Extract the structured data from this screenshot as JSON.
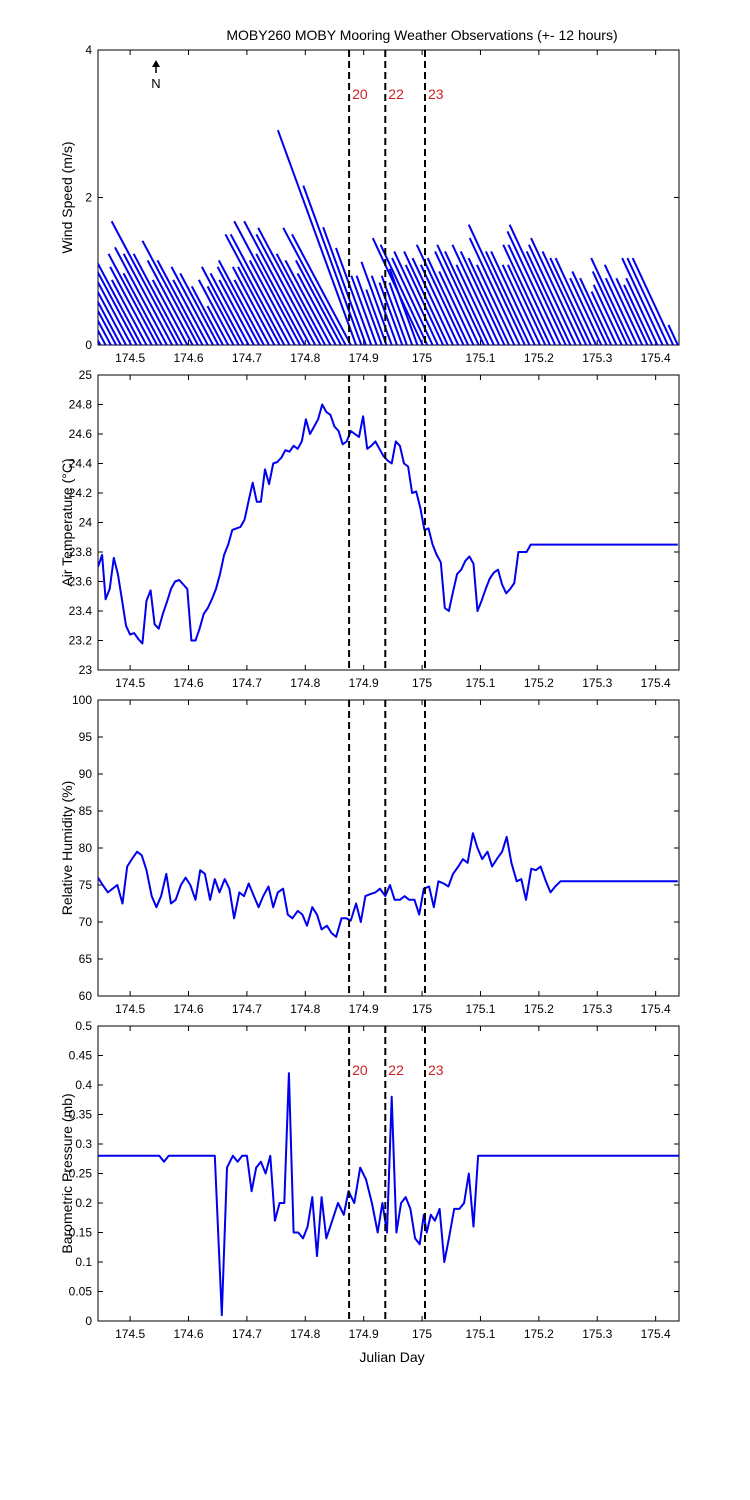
{
  "title": "MOBY260 MOBY Mooring Weather Observations (+- 12 hours)",
  "xlabel": "Julian Day",
  "xlim": [
    174.445,
    175.44
  ],
  "xticks": [
    "174.5",
    "174.6",
    "174.7",
    "174.8",
    "174.9",
    "175",
    "175.1",
    "175.2",
    "175.3",
    "175.4"
  ],
  "markers": [
    {
      "x": 174.875,
      "label": "20"
    },
    {
      "x": 174.937,
      "label": "22"
    },
    {
      "x": 175.005,
      "label": "23"
    }
  ],
  "north_label": "N",
  "colors": {
    "series": "#0000ee",
    "marker_label": "#cc2222",
    "axis": "#000000"
  },
  "chart_data": [
    {
      "type": "line",
      "subtype": "wind-vectors",
      "ylabel": "Wind Speed (m/s)",
      "ylim": [
        0,
        4
      ],
      "yticks": [
        "0",
        "2",
        "4"
      ],
      "show_markers": true,
      "marker_labels": true,
      "x": [
        174.449,
        174.458,
        174.467,
        174.476,
        174.484,
        174.493,
        174.502,
        174.511,
        174.519,
        174.528,
        174.537,
        174.546,
        174.554,
        174.563,
        174.572,
        174.581,
        174.589,
        174.598,
        174.607,
        174.616,
        174.624,
        174.633,
        174.642,
        174.651,
        174.659,
        174.668,
        174.677,
        174.686,
        174.694,
        174.703,
        174.712,
        174.721,
        174.729,
        174.738,
        174.747,
        174.756,
        174.764,
        174.773,
        174.782,
        174.791,
        174.799,
        174.808,
        174.817,
        174.826,
        174.834,
        174.843,
        174.852,
        174.861,
        174.869,
        174.878,
        174.887,
        174.896,
        174.904,
        174.913,
        174.922,
        174.931,
        174.939,
        174.948,
        174.957,
        174.966,
        174.974,
        174.983,
        174.992,
        175.001,
        175.009,
        175.018,
        175.027,
        175.036,
        175.044,
        175.053,
        175.062,
        175.071,
        175.079,
        175.088,
        175.097,
        175.106,
        175.114,
        175.123,
        175.132,
        175.141,
        175.149,
        175.158,
        175.167,
        175.176,
        175.184,
        175.193,
        175.202,
        175.211,
        175.219,
        175.228,
        175.237,
        175.246,
        175.254,
        175.263,
        175.272,
        175.281,
        175.289,
        175.298,
        175.307,
        175.316,
        175.324,
        175.333,
        175.342,
        175.351,
        175.359,
        175.368,
        175.377,
        175.386,
        175.394,
        175.403,
        175.412,
        175.421,
        175.43,
        175.438
      ],
      "speed": [
        0.5,
        0.6,
        1.0,
        1.2,
        1.2,
        1.0,
        1.3,
        1.3,
        1.4,
        1.0,
        1.2,
        1.4,
        1.1,
        1.5,
        1.4,
        1.9,
        1.4,
        1.0,
        1.3,
        1.6,
        1.3,
        1.0,
        1.2,
        1.1,
        0.9,
        0.6,
        1.0,
        0.9,
        1.2,
        1.1,
        1.0,
        1.2,
        1.3,
        1.0,
        1.2,
        1.2,
        1.7,
        1.7,
        1.3,
        1.9,
        1.4,
        1.9,
        1.7,
        1.8,
        1.4,
        1.3,
        1.1,
        1.3,
        1.8,
        1.7,
        3.1,
        2.3,
        1.7,
        1.4,
        1.0,
        1.0,
        0.8,
        1.2,
        1.0,
        0.9,
        1.0,
        0.9,
        1.1,
        1.6,
        1.5,
        1.3,
        1.4,
        1.2,
        1.4,
        1.3,
        1.2,
        1.5,
        1.3,
        1.1,
        1.4,
        1.5,
        1.4,
        1.2,
        1.5,
        1.4,
        1.3,
        1.2,
        1.6,
        1.8,
        1.4,
        1.4,
        1.2,
        1.2,
        1.5,
        1.5,
        1.7,
        1.8,
        1.4,
        1.5,
        1.6,
        1.4,
        1.3,
        1.3,
        1.0,
        1.1,
        1.0,
        0.8,
        0.9,
        1.1,
        1.3,
        1.0,
        1.2,
        1.0,
        0.9,
        1.0,
        1.3,
        1.3,
        1.3,
        0.3
      ],
      "direction_deg": [
        -28,
        -28,
        -28,
        -28,
        -28,
        -28,
        -28,
        -28,
        -28,
        -28,
        -28,
        -28,
        -28,
        -28,
        -28,
        -28,
        -28,
        -28,
        -28,
        -28,
        -28,
        -28,
        -28,
        -28,
        -28,
        -28,
        -28,
        -28,
        -28,
        -28,
        -28,
        -28,
        -28,
        -28,
        -28,
        -28,
        -28,
        -28,
        -28,
        -28,
        -28,
        -28,
        -28,
        -28,
        -28,
        -28,
        -28,
        -28,
        -28,
        -28,
        -20,
        -20,
        -20,
        -20,
        -20,
        -20,
        -20,
        -20,
        -20,
        -20,
        -20,
        -20,
        -20,
        -25,
        -25,
        -25,
        -25,
        -25,
        -25,
        -25,
        -25,
        -25,
        -25,
        -25,
        -25,
        -25,
        -25,
        -25,
        -25,
        -25,
        -25,
        -25,
        -25,
        -25,
        -25,
        -25,
        -25,
        -25,
        -25,
        -25,
        -25,
        -25,
        -25,
        -25,
        -25,
        -25,
        -25,
        -25,
        -25,
        -25,
        -25,
        -25,
        -25,
        -25,
        -25,
        -25,
        -25,
        -25,
        -25,
        -25,
        -25,
        -25,
        -25,
        -25
      ]
    },
    {
      "type": "line",
      "ylabel": "Air Temperature (°C)",
      "ylim": [
        23,
        25
      ],
      "yticks": [
        "23",
        "23.2",
        "23.4",
        "23.6",
        "23.8",
        "24",
        "24.2",
        "24.4",
        "24.6",
        "24.8",
        "25"
      ],
      "show_markers": true,
      "marker_labels": false,
      "x": [
        174.445,
        174.452,
        174.458,
        174.465,
        174.472,
        174.479,
        174.486,
        174.493,
        174.5,
        174.507,
        174.514,
        174.521,
        174.528,
        174.535,
        174.542,
        174.549,
        174.556,
        174.563,
        174.57,
        174.577,
        174.584,
        174.591,
        174.598,
        174.605,
        174.612,
        174.619,
        174.626,
        174.633,
        174.64,
        174.647,
        174.654,
        174.661,
        174.668,
        174.675,
        174.682,
        174.689,
        174.696,
        174.703,
        174.71,
        174.717,
        174.724,
        174.731,
        174.738,
        174.745,
        174.752,
        174.759,
        174.766,
        174.773,
        174.78,
        174.787,
        174.794,
        174.801,
        174.808,
        174.815,
        174.822,
        174.829,
        174.836,
        174.843,
        174.85,
        174.857,
        174.864,
        174.871,
        174.878,
        174.885,
        174.892,
        174.899,
        174.906,
        174.913,
        174.92,
        174.927,
        174.934,
        174.941,
        174.948,
        174.955,
        174.962,
        174.969,
        174.976,
        174.983,
        174.99,
        174.997,
        175.004,
        175.011,
        175.018,
        175.025,
        175.032,
        175.039,
        175.046,
        175.053,
        175.06,
        175.067,
        175.074,
        175.081,
        175.088,
        175.095,
        175.102,
        175.109,
        175.116,
        175.123,
        175.13,
        175.137,
        175.144,
        175.151,
        175.158,
        175.165,
        175.172,
        175.179,
        175.186,
        175.193,
        175.2,
        175.207,
        175.214,
        175.221,
        175.228,
        175.235,
        175.242,
        175.249,
        175.256,
        175.263,
        175.27,
        175.277,
        175.284,
        175.291,
        175.298,
        175.305,
        175.312,
        175.319,
        175.326,
        175.333,
        175.34,
        175.347,
        175.354,
        175.361,
        175.368,
        175.375,
        175.382,
        175.389,
        175.396,
        175.403,
        175.41,
        175.417,
        175.424,
        175.431,
        175.438
      ],
      "y": [
        23.7,
        23.78,
        23.48,
        23.55,
        23.76,
        23.65,
        23.48,
        23.3,
        23.24,
        23.25,
        23.21,
        23.18,
        23.47,
        23.54,
        23.31,
        23.28,
        23.38,
        23.46,
        23.55,
        23.6,
        23.61,
        23.58,
        23.55,
        23.2,
        23.2,
        23.28,
        23.38,
        23.42,
        23.48,
        23.55,
        23.65,
        23.78,
        23.85,
        23.95,
        23.96,
        23.97,
        24.02,
        24.15,
        24.27,
        24.14,
        24.14,
        24.36,
        24.26,
        24.4,
        24.41,
        24.44,
        24.49,
        24.48,
        24.52,
        24.5,
        24.55,
        24.7,
        24.6,
        24.65,
        24.7,
        24.8,
        24.75,
        24.73,
        24.65,
        24.62,
        24.53,
        24.55,
        24.62,
        24.6,
        24.58,
        24.72,
        24.5,
        24.52,
        24.55,
        24.5,
        24.45,
        24.42,
        24.4,
        24.55,
        24.52,
        24.4,
        24.38,
        24.2,
        24.21,
        24.1,
        23.95,
        23.96,
        23.85,
        23.78,
        23.73,
        23.42,
        23.4,
        23.53,
        23.65,
        23.68,
        23.74,
        23.77,
        23.72,
        23.4,
        23.47,
        23.55,
        23.62,
        23.66,
        23.68,
        23.58,
        23.52,
        23.55,
        23.59,
        23.8,
        23.8,
        23.8,
        23.85,
        23.85,
        23.85,
        23.85,
        23.85,
        23.85,
        23.85,
        23.85,
        23.85,
        23.85,
        23.85,
        23.85,
        23.85,
        23.85,
        23.85,
        23.85,
        23.85,
        23.85,
        23.85,
        23.85,
        23.85,
        23.85,
        23.85,
        23.85,
        23.85,
        23.85,
        23.85,
        23.85,
        23.85,
        23.85,
        23.85,
        23.85,
        23.85,
        23.85,
        23.85,
        23.85,
        23.85
      ]
    },
    {
      "type": "line",
      "ylabel": "Relative Humidity (%)",
      "ylim": [
        60,
        100
      ],
      "yticks": [
        "60",
        "65",
        "70",
        "75",
        "80",
        "85",
        "90",
        "95",
        "100"
      ],
      "show_markers": true,
      "marker_labels": false,
      "x": [
        174.445,
        174.453,
        174.462,
        174.47,
        174.478,
        174.487,
        174.495,
        174.503,
        174.512,
        174.52,
        174.528,
        174.537,
        174.545,
        174.553,
        174.562,
        174.57,
        174.578,
        174.587,
        174.595,
        174.603,
        174.612,
        174.62,
        174.628,
        174.637,
        174.645,
        174.653,
        174.662,
        174.67,
        174.678,
        174.687,
        174.695,
        174.703,
        174.712,
        174.72,
        174.728,
        174.737,
        174.745,
        174.753,
        174.762,
        174.77,
        174.778,
        174.787,
        174.795,
        174.803,
        174.812,
        174.82,
        174.828,
        174.837,
        174.845,
        174.853,
        174.862,
        174.87,
        174.878,
        174.887,
        174.895,
        174.903,
        174.912,
        174.92,
        174.928,
        174.937,
        174.945,
        174.953,
        174.962,
        174.97,
        174.978,
        174.987,
        174.995,
        175.003,
        175.012,
        175.02,
        175.028,
        175.037,
        175.045,
        175.053,
        175.062,
        175.07,
        175.078,
        175.087,
        175.095,
        175.103,
        175.112,
        175.12,
        175.128,
        175.137,
        175.145,
        175.153,
        175.162,
        175.17,
        175.178,
        175.187,
        175.195,
        175.203,
        175.212,
        175.22,
        175.228,
        175.237,
        175.245,
        175.253,
        175.262,
        175.27,
        175.278,
        175.287,
        175.295,
        175.303,
        175.312,
        175.32,
        175.328,
        175.337,
        175.345,
        175.353,
        175.362,
        175.37,
        175.378,
        175.387,
        175.395,
        175.403,
        175.412,
        175.42,
        175.428,
        175.438
      ],
      "y": [
        76,
        75,
        74,
        74.5,
        75,
        72.5,
        77.5,
        78.5,
        79.5,
        79,
        77,
        73.5,
        72,
        73.5,
        76.5,
        72.5,
        73,
        75,
        76,
        75,
        73,
        77,
        76.5,
        73,
        75.8,
        74,
        75.8,
        74.5,
        70.5,
        74,
        73.5,
        75.2,
        73.5,
        72,
        73.5,
        74.8,
        72,
        74,
        74.5,
        71,
        70.5,
        71.5,
        71,
        69.5,
        72,
        71,
        69,
        69.5,
        68.5,
        68,
        70.5,
        70.5,
        70.2,
        72.5,
        70,
        73.5,
        73.8,
        74,
        74.5,
        73.5,
        75,
        73,
        73,
        73.5,
        73,
        73,
        71,
        74.5,
        74.8,
        72,
        75.5,
        75.2,
        74.8,
        76.5,
        77.5,
        78.5,
        78,
        82,
        80,
        78.5,
        79.5,
        77.5,
        78.5,
        79.5,
        81.5,
        78,
        75.5,
        75.8,
        73,
        77.2,
        77,
        77.5,
        75.5,
        74,
        74.8,
        75.5,
        75.5,
        75.5,
        75.5,
        75.5,
        75.5,
        75.5,
        75.5,
        75.5,
        75.5,
        75.5,
        75.5,
        75.5,
        75.5,
        75.5,
        75.5,
        75.5,
        75.5,
        75.5,
        75.5,
        75.5,
        75.5,
        75.5,
        75.5,
        75.5
      ]
    },
    {
      "type": "line",
      "ylabel": "Barometric Pressure (mb)",
      "ylim": [
        0,
        0.5
      ],
      "yticks": [
        "0",
        "0.05",
        "0.1",
        "0.15",
        "0.2",
        "0.25",
        "0.3",
        "0.35",
        "0.4",
        "0.45",
        "0.5"
      ],
      "show_markers": true,
      "marker_labels": true,
      "x": [
        174.445,
        174.55,
        174.558,
        174.566,
        174.63,
        174.645,
        174.657,
        174.666,
        174.676,
        174.684,
        174.692,
        174.7,
        174.708,
        174.716,
        174.724,
        174.732,
        174.74,
        174.748,
        174.756,
        174.764,
        174.772,
        174.78,
        174.788,
        174.796,
        174.804,
        174.812,
        174.82,
        174.828,
        174.836,
        174.846,
        174.856,
        174.866,
        174.874,
        174.884,
        174.894,
        174.904,
        174.914,
        174.924,
        174.932,
        174.94,
        174.948,
        174.956,
        174.964,
        174.972,
        174.98,
        174.988,
        174.996,
        175.003,
        175.008,
        175.015,
        175.022,
        175.03,
        175.038,
        175.046,
        175.055,
        175.064,
        175.072,
        175.08,
        175.088,
        175.096,
        175.104,
        175.112,
        175.12,
        175.128,
        175.138,
        175.148,
        175.158,
        175.168,
        175.176,
        175.184,
        175.192,
        175.198,
        175.206,
        175.3,
        175.44
      ],
      "y": [
        0.28,
        0.28,
        0.27,
        0.28,
        0.28,
        0.28,
        0.01,
        0.26,
        0.28,
        0.27,
        0.28,
        0.28,
        0.22,
        0.26,
        0.27,
        0.25,
        0.28,
        0.17,
        0.2,
        0.2,
        0.42,
        0.15,
        0.15,
        0.14,
        0.16,
        0.21,
        0.11,
        0.21,
        0.14,
        0.17,
        0.2,
        0.18,
        0.22,
        0.2,
        0.26,
        0.24,
        0.2,
        0.15,
        0.2,
        0.15,
        0.38,
        0.15,
        0.2,
        0.21,
        0.19,
        0.14,
        0.13,
        0.18,
        0.15,
        0.18,
        0.17,
        0.19,
        0.1,
        0.14,
        0.19,
        0.19,
        0.2,
        0.25,
        0.16,
        0.28,
        0.28,
        0.28,
        0.28,
        0.28,
        0.28,
        0.28,
        0.28,
        0.28,
        0.28,
        0.28,
        0.28,
        0.28,
        0.28,
        0.28,
        0.28
      ]
    }
  ]
}
